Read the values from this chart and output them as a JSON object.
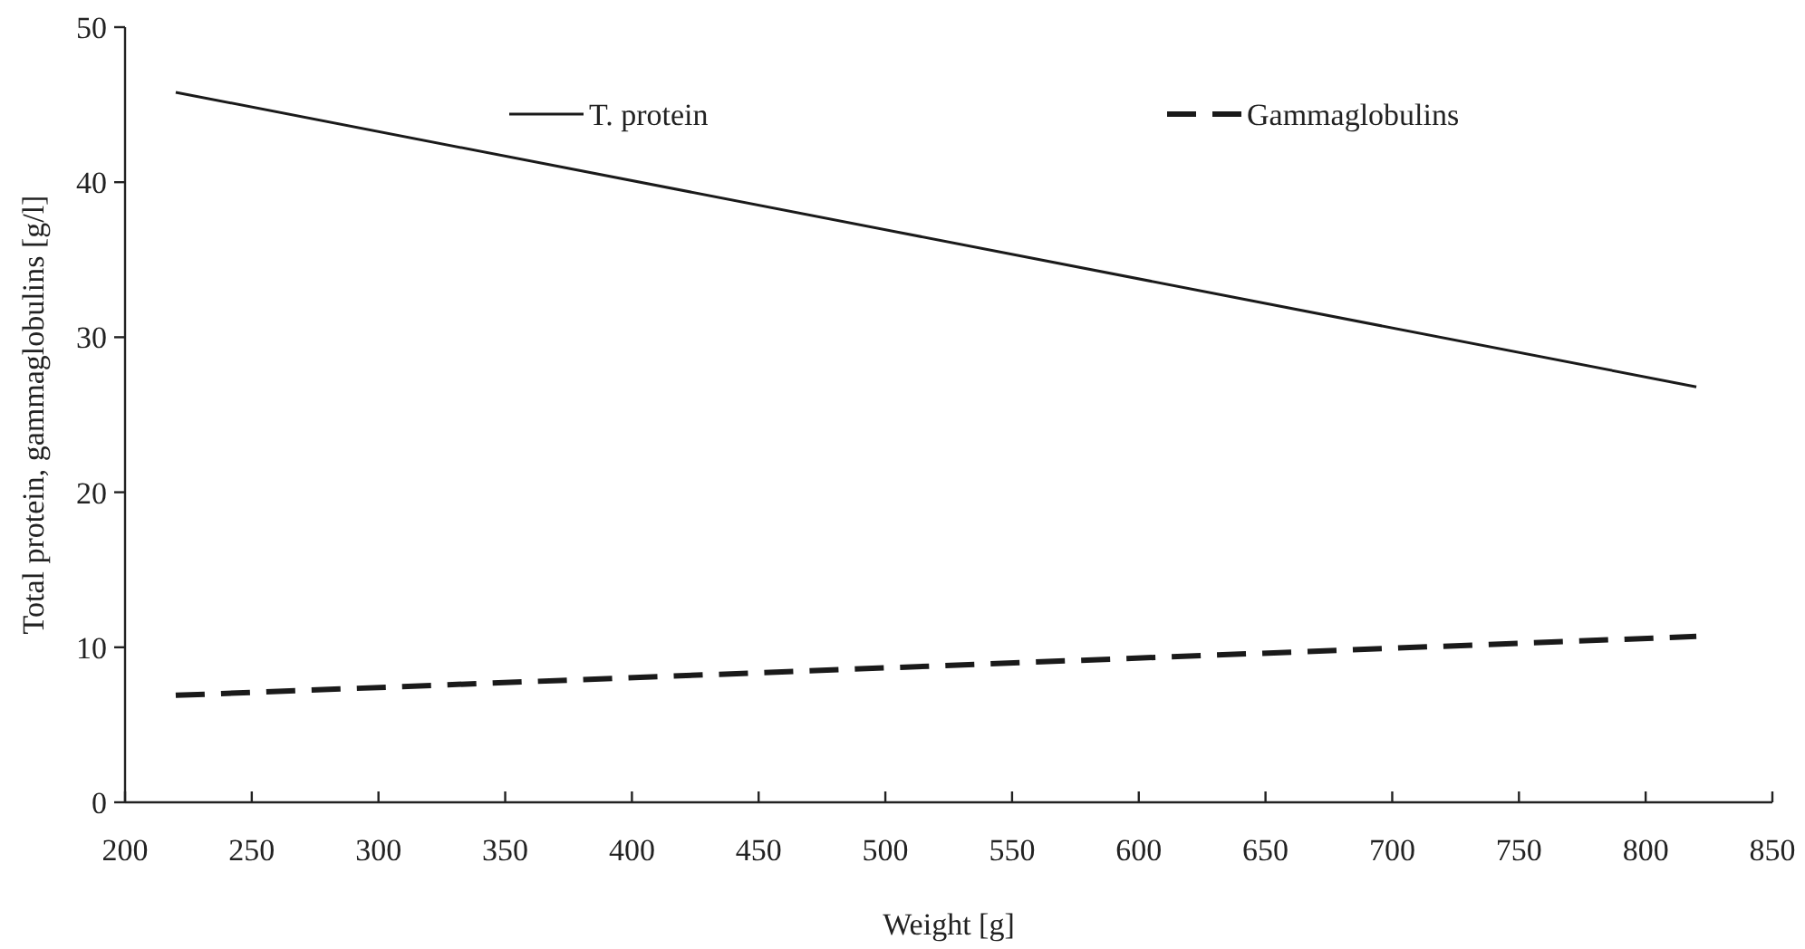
{
  "chart_data": {
    "type": "line",
    "xlabel": "Weight [g]",
    "ylabel": "Total protein, gammaglobulins [g/l]",
    "xlim": [
      200,
      850
    ],
    "xticks": [
      200,
      250,
      300,
      350,
      400,
      450,
      500,
      550,
      600,
      650,
      700,
      750,
      800,
      850
    ],
    "x": [
      220,
      820
    ],
    "ylim": [
      0,
      50
    ],
    "yticks": [
      0,
      10,
      20,
      30,
      40,
      50
    ],
    "grid": false,
    "legend": "top right",
    "marker": "none",
    "series": [
      {
        "name": "T. protein",
        "color": "#1a1a1a",
        "values": [
          45.8,
          26.8
        ],
        "line_style": "solid"
      },
      {
        "name": "Gammaglobulins",
        "color": "#1a1a1a",
        "values": [
          6.9,
          10.7
        ],
        "line_style": "dashed"
      }
    ]
  }
}
